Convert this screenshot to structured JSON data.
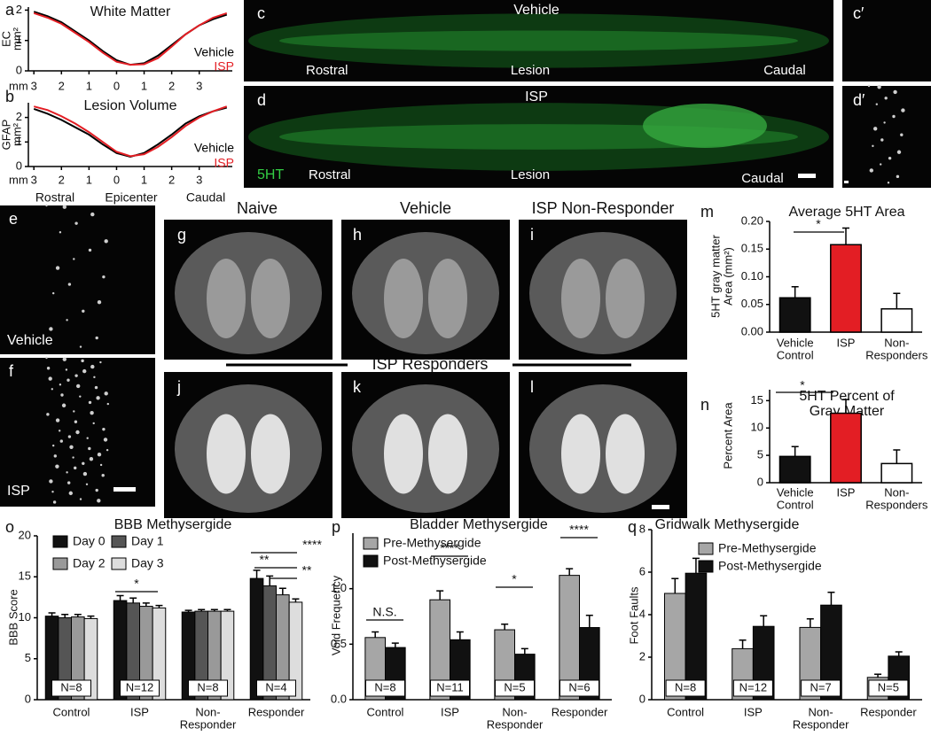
{
  "chart_data": [
    {
      "panel": "a",
      "type": "line",
      "title": "White Matter",
      "ylabel": [
        "EC",
        "mm²"
      ],
      "x_label": "mm",
      "x": [
        -3,
        -2.5,
        -2,
        -1.5,
        -1,
        -0.5,
        0,
        0.5,
        1,
        1.5,
        2,
        2.5,
        3,
        3.5,
        4
      ],
      "xlim": [
        -3.2,
        4.2
      ],
      "xticks": [
        {
          "value": -3,
          "label": "3"
        },
        {
          "value": -2,
          "label": "2"
        },
        {
          "value": -1,
          "label": "1"
        },
        0,
        1,
        2,
        3
      ],
      "ylim": [
        0,
        2.1
      ],
      "yticks": [
        0,
        1,
        2
      ],
      "series": [
        {
          "name": "Vehicle",
          "color": "#000000",
          "values": [
            1.95,
            1.8,
            1.6,
            1.3,
            1.0,
            0.65,
            0.35,
            0.2,
            0.25,
            0.5,
            0.85,
            1.2,
            1.5,
            1.7,
            1.85
          ]
        },
        {
          "name": "ISP",
          "color": "#e31e24",
          "values": [
            1.9,
            1.75,
            1.55,
            1.25,
            0.95,
            0.6,
            0.3,
            0.2,
            0.22,
            0.42,
            0.8,
            1.2,
            1.5,
            1.75,
            1.9
          ]
        }
      ]
    },
    {
      "panel": "b",
      "type": "line",
      "title": "Lesion Volume",
      "ylabel": [
        "GFAP",
        "mm²"
      ],
      "x_label": "mm",
      "x_regions": [
        "Rostral",
        "Epicenter",
        "Caudal"
      ],
      "x": [
        -3,
        -2.5,
        -2,
        -1.5,
        -1,
        -0.5,
        0,
        0.5,
        1,
        1.5,
        2,
        2.5,
        3,
        3.5,
        4
      ],
      "xlim": [
        -3.2,
        4.2
      ],
      "xticks": [
        {
          "value": -3,
          "label": "3"
        },
        {
          "value": -2,
          "label": "2"
        },
        {
          "value": -1,
          "label": "1"
        },
        0,
        1,
        2,
        3
      ],
      "ylim": [
        0,
        2.6
      ],
      "yticks": [
        0,
        1,
        2
      ],
      "series": [
        {
          "name": "Vehicle",
          "color": "#000000",
          "values": [
            2.35,
            2.15,
            1.9,
            1.6,
            1.3,
            0.9,
            0.55,
            0.4,
            0.55,
            0.9,
            1.3,
            1.75,
            2.05,
            2.25,
            2.4
          ]
        },
        {
          "name": "ISP",
          "color": "#e31e24",
          "values": [
            2.45,
            2.3,
            2.05,
            1.75,
            1.4,
            1.0,
            0.6,
            0.42,
            0.5,
            0.8,
            1.2,
            1.65,
            2.0,
            2.25,
            2.45
          ]
        }
      ]
    },
    {
      "panel": "m",
      "type": "bar",
      "title": "Average 5HT Area",
      "ylabel": [
        "5HT gray matter",
        "Area (mm²)"
      ],
      "categories": [
        [
          "Vehicle",
          "Control"
        ],
        "ISP",
        [
          "Non-",
          "Responders"
        ]
      ],
      "values": [
        0.062,
        0.158,
        0.042
      ],
      "errors": [
        0.02,
        0.03,
        0.028
      ],
      "colors": [
        "#111111",
        "#e31e24",
        "#ffffff"
      ],
      "ylim": [
        0,
        0.2
      ],
      "yticks": [
        {
          "value": 0,
          "label": "0.00"
        },
        {
          "value": 0.05,
          "label": "0.05"
        },
        {
          "value": 0.1,
          "label": "0.10"
        },
        {
          "value": 0.15,
          "label": "0.15"
        },
        {
          "value": 0.2,
          "label": "0.20"
        }
      ],
      "annotations": [
        "*"
      ]
    },
    {
      "panel": "n",
      "type": "bar",
      "title": [
        "5HT Percent of",
        "Gray Matter"
      ],
      "ylabel": "Percent Area",
      "categories": [
        [
          "Vehicle",
          "Control"
        ],
        "ISP",
        [
          "Non-",
          "Responders"
        ]
      ],
      "values": [
        4.8,
        12.7,
        3.5
      ],
      "errors": [
        1.8,
        2.5,
        2.5
      ],
      "colors": [
        "#111111",
        "#e31e24",
        "#ffffff"
      ],
      "ylim": [
        0,
        17
      ],
      "yticks": [
        0,
        5,
        10,
        15
      ],
      "annotations": [
        "*"
      ]
    },
    {
      "panel": "o",
      "type": "bar",
      "title": "BBB Methysergide",
      "ylabel": "BBB  Score",
      "categories": [
        "Control",
        "ISP",
        [
          "Non-",
          "Responder"
        ],
        "Responder"
      ],
      "ylim": [
        0,
        20
      ],
      "yticks": [
        0,
        5,
        10,
        15,
        20
      ],
      "series": [
        {
          "name": "Day 0",
          "color": "#111111",
          "values": [
            10.2,
            12.1,
            10.7,
            14.8
          ],
          "errors": [
            0.4,
            0.6,
            0.2,
            1.0
          ]
        },
        {
          "name": "Day 1",
          "color": "#555555",
          "values": [
            10.0,
            11.8,
            10.8,
            13.9
          ],
          "errors": [
            0.4,
            0.6,
            0.2,
            1.2
          ]
        },
        {
          "name": "Day 2",
          "color": "#999999",
          "values": [
            10.1,
            11.4,
            10.8,
            12.8
          ],
          "errors": [
            0.3,
            0.4,
            0.2,
            0.8
          ]
        },
        {
          "name": "Day 3",
          "color": "#dddddd",
          "values": [
            9.9,
            11.2,
            10.8,
            11.9
          ],
          "errors": [
            0.3,
            0.3,
            0.2,
            0.4
          ]
        }
      ],
      "n_labels": [
        "N=8",
        "N=12",
        "N=8",
        "N=4"
      ],
      "annotations": [
        "*",
        "****",
        "**",
        "**"
      ]
    },
    {
      "panel": "p",
      "type": "bar",
      "title": "Bladder Methysergide",
      "ylabel": "Void Frequency",
      "categories": [
        "Control",
        "ISP",
        [
          "Non-",
          "Responder"
        ],
        "Responder"
      ],
      "ylim": [
        0,
        1.5
      ],
      "yticks": [
        {
          "value": 0,
          "label": "0.0"
        },
        {
          "value": 0.5,
          "label": "0.5"
        },
        {
          "value": 1,
          "label": "1.0"
        }
      ],
      "series": [
        {
          "name": "Pre-Methysergide",
          "color": "#a6a6a6",
          "values": [
            0.56,
            0.9,
            0.63,
            1.12
          ],
          "errors": [
            0.05,
            0.08,
            0.05,
            0.06
          ]
        },
        {
          "name": "Post-Methysergide",
          "color": "#111111",
          "values": [
            0.47,
            0.54,
            0.41,
            0.65
          ],
          "errors": [
            0.04,
            0.07,
            0.05,
            0.11
          ]
        }
      ],
      "n_labels": [
        "N=8",
        "N=11",
        "N=5",
        "N=6"
      ],
      "annotations": [
        "N.S.",
        "****",
        "*",
        "****"
      ]
    },
    {
      "panel": "q",
      "type": "bar",
      "title": "Gridwalk Methysergide",
      "ylabel": "Foot Faults",
      "categories": [
        "Control",
        "ISP",
        [
          "Non-",
          "Responder"
        ],
        "Responder"
      ],
      "ylim": [
        0,
        8
      ],
      "yticks": [
        0,
        2,
        4,
        6,
        8
      ],
      "series": [
        {
          "name": "Pre-Methysergide",
          "color": "#a6a6a6",
          "values": [
            5.0,
            2.4,
            3.4,
            1.05
          ],
          "errors": [
            0.7,
            0.4,
            0.4,
            0.15
          ]
        },
        {
          "name": "Post-Methysergide",
          "color": "#111111",
          "values": [
            5.95,
            3.45,
            4.45,
            2.05
          ],
          "errors": [
            0.7,
            0.5,
            0.6,
            0.2
          ]
        }
      ],
      "n_labels": [
        "N=8",
        "N=12",
        "N=7",
        "N=5"
      ]
    }
  ],
  "images": [
    {
      "panel": "c",
      "labels": [
        "Vehicle",
        "Rostral",
        "Lesion",
        "Caudal"
      ]
    },
    {
      "panel": "c′"
    },
    {
      "panel": "d",
      "labels": [
        "ISP",
        "5HT",
        "Rostral",
        "Lesion",
        "Caudal"
      ]
    },
    {
      "panel": "d′"
    },
    {
      "panel": "e",
      "labels": [
        "Vehicle"
      ]
    },
    {
      "panel": "f",
      "labels": [
        "ISP"
      ]
    },
    {
      "panel": "g",
      "labels": [
        "Naive"
      ]
    },
    {
      "panel": "h",
      "labels": [
        "Vehicle"
      ]
    },
    {
      "panel": "i",
      "labels": [
        "ISP Non-Responder"
      ]
    },
    {
      "panel": "j"
    },
    {
      "panel": "k"
    },
    {
      "panel": "l"
    }
  ],
  "banner": "ISP Responders"
}
